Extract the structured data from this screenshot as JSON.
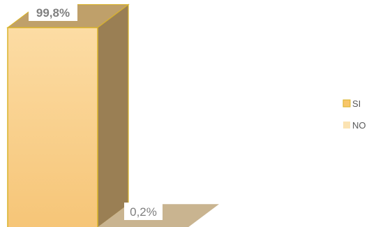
{
  "chart_data": {
    "type": "bar",
    "three_d": true,
    "categories": [
      ""
    ],
    "series": [
      {
        "name": "SI",
        "values": [
          99.8
        ],
        "label": "99,8%",
        "color": "#f8c66a"
      },
      {
        "name": "NO",
        "values": [
          0.2
        ],
        "label": "0,2%",
        "color": "#fbe3b3"
      }
    ],
    "title": "",
    "xlabel": "",
    "ylabel": "",
    "ylim": [
      0,
      100
    ],
    "grid": false,
    "legend": "right",
    "legend_entries": [
      "SI",
      "NO"
    ]
  },
  "colors": {
    "si_front_top": "#fcdca4",
    "si_front_bottom": "#f6c577",
    "si_side": "#9a7f54",
    "si_top": "#bfa06a",
    "si_outline": "#d9b32a",
    "no_top": "#c9b490",
    "no_front": "#f3d9a8"
  }
}
